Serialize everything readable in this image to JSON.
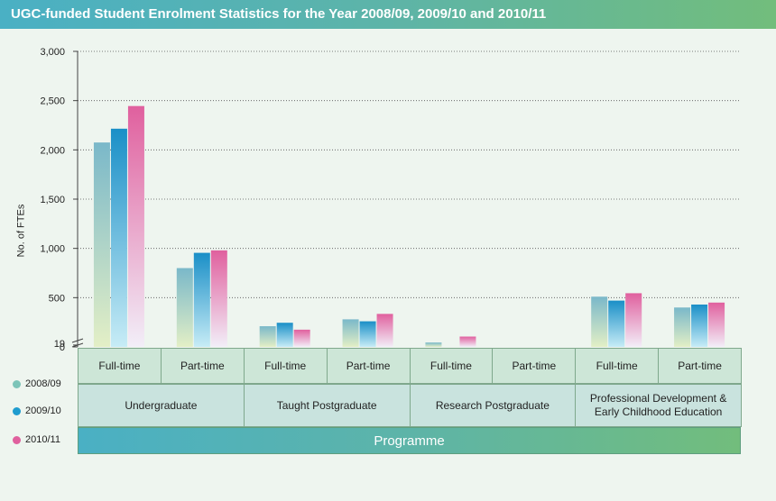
{
  "title": "UGC-funded Student Enrolment Statistics for the Year 2008/09, 2009/10 and 2010/11",
  "colors": {
    "series_2008": "#7cc4b8",
    "series_2009": "#1e9ccf",
    "series_2010": "#e0609e"
  },
  "chart_data": {
    "type": "bar",
    "ylabel": "No. of FTEs",
    "xlabel": "Programme",
    "ylim": [
      0,
      3000
    ],
    "y_ticks": [
      "3,000",
      "2,500",
      "2,000",
      "1,500",
      "1,000",
      "500",
      "19",
      "0"
    ],
    "categories": [
      {
        "group": "Undergraduate",
        "mode": "Full-time"
      },
      {
        "group": "Undergraduate",
        "mode": "Part-time"
      },
      {
        "group": "Taught Postgraduate",
        "mode": "Full-time"
      },
      {
        "group": "Taught Postgraduate",
        "mode": "Part-time"
      },
      {
        "group": "Research Postgraduate",
        "mode": "Full-time"
      },
      {
        "group": "Research Postgraduate",
        "mode": "Part-time"
      },
      {
        "group": "Professional Development & Early Childhood Education",
        "mode": "Full-time"
      },
      {
        "group": "Professional Development & Early Childhood Education",
        "mode": "Part-time"
      }
    ],
    "groups": [
      "Undergraduate",
      "Taught Postgraduate",
      "Research Postgraduate",
      "Professional Development & Early Childhood Education"
    ],
    "series": [
      {
        "name": "2008/09",
        "values": [
          2075,
          800,
          210,
          280,
          45,
          0,
          510,
          400
        ]
      },
      {
        "name": "2009/10",
        "values": [
          2215,
          955,
          245,
          260,
          0,
          0,
          470,
          430
        ]
      },
      {
        "name": "2010/11",
        "values": [
          2445,
          980,
          175,
          335,
          105,
          0,
          545,
          450
        ]
      }
    ],
    "grid": true,
    "legend": "left"
  }
}
